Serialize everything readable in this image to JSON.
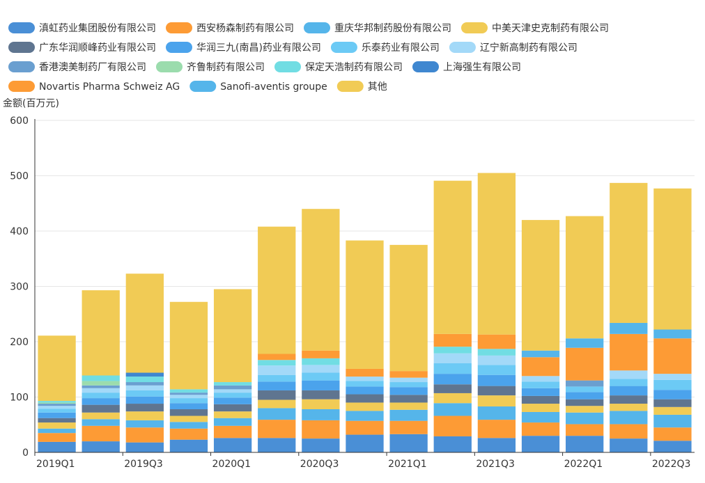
{
  "chart_data": {
    "type": "bar",
    "stacked": true,
    "ylabel": "金额(百万元)",
    "ylim": [
      0,
      600
    ],
    "yticks": [
      0,
      100,
      200,
      300,
      400,
      500,
      600
    ],
    "categories": [
      "2019Q1",
      "2019Q2",
      "2019Q3",
      "2019Q4",
      "2020Q1",
      "2020Q2",
      "2020Q3",
      "2020Q4",
      "2021Q1",
      "2021Q2",
      "2021Q3",
      "2021Q4",
      "2022Q1",
      "2022Q2",
      "2022Q3"
    ],
    "xtick_labels": [
      "2019Q1",
      "",
      "2019Q3",
      "",
      "2020Q1",
      "",
      "2020Q3",
      "",
      "2021Q1",
      "",
      "2021Q3",
      "",
      "2022Q1",
      "",
      "2022Q3"
    ],
    "legend_position": "top",
    "series": [
      {
        "name": "滇虹药业集团股份有限公司",
        "color": "#4a8fd6",
        "values": [
          19,
          20,
          18,
          23,
          26,
          26,
          25,
          32,
          33,
          29,
          26,
          30,
          30,
          25,
          21
        ]
      },
      {
        "name": "西安杨森制药有限公司",
        "color": "#fd9b35",
        "values": [
          16,
          28,
          27,
          20,
          22,
          33,
          33,
          25,
          24,
          37,
          33,
          24,
          21,
          26,
          24
        ]
      },
      {
        "name": "重庆华邦制药股份有限公司",
        "color": "#55b5ea",
        "values": [
          8,
          12,
          13,
          12,
          14,
          21,
          20,
          18,
          20,
          23,
          24,
          19,
          21,
          24,
          23
        ]
      },
      {
        "name": "中美天津史克制药有限公司",
        "color": "#f1cb55",
        "values": [
          11,
          12,
          16,
          11,
          12,
          15,
          18,
          15,
          13,
          18,
          20,
          15,
          12,
          13,
          14
        ]
      },
      {
        "name": "广东华润顺峰药业有限公司",
        "color": "#5f7590",
        "values": [
          8,
          14,
          14,
          12,
          13,
          17,
          16,
          15,
          14,
          16,
          17,
          14,
          12,
          15,
          14
        ]
      },
      {
        "name": "华润三九(南昌)药业有限公司",
        "color": "#4ba3ec",
        "values": [
          10,
          12,
          13,
          11,
          12,
          16,
          18,
          14,
          14,
          19,
          20,
          14,
          13,
          17,
          17
        ]
      },
      {
        "name": "乐泰药业有限公司",
        "color": "#6ccaf5",
        "values": [
          7,
          10,
          11,
          9,
          9,
          12,
          14,
          10,
          9,
          19,
          18,
          12,
          10,
          13,
          18
        ]
      },
      {
        "name": "辽宁新高制药有限公司",
        "color": "#a3d9f8",
        "values": [
          5,
          8,
          9,
          6,
          6,
          17,
          14,
          8,
          8,
          18,
          17,
          10,
          0,
          15,
          11
        ]
      },
      {
        "name": "香港澳美制药厂有限公司",
        "color": "#6a9fd0",
        "values": [
          4,
          5,
          6,
          4,
          7,
          0,
          0,
          0,
          0,
          0,
          0,
          0,
          11,
          0,
          0
        ]
      },
      {
        "name": "齐鲁制药有限公司",
        "color": "#9bdcad",
        "values": [
          2,
          8,
          0,
          0,
          0,
          0,
          0,
          0,
          0,
          0,
          0,
          0,
          0,
          0,
          0
        ]
      },
      {
        "name": "保定天浩制药有限公司",
        "color": "#71dde3",
        "values": [
          3,
          10,
          10,
          6,
          6,
          10,
          12,
          0,
          0,
          12,
          12,
          0,
          0,
          0,
          0
        ]
      },
      {
        "name": "上海强生有限公司",
        "color": "#3f87d0",
        "values": [
          0,
          0,
          7,
          0,
          0,
          0,
          0,
          0,
          0,
          0,
          0,
          0,
          0,
          0,
          0
        ]
      },
      {
        "name": "Novartis Pharma Schweiz AG",
        "color": "#fd9b35",
        "values": [
          0,
          0,
          0,
          0,
          0,
          11,
          14,
          14,
          12,
          23,
          26,
          34,
          59,
          66,
          64
        ]
      },
      {
        "name": "Sanofi-aventis groupe",
        "color": "#55b5ea",
        "values": [
          0,
          0,
          0,
          0,
          0,
          0,
          0,
          0,
          0,
          0,
          0,
          12,
          17,
          20,
          16
        ]
      },
      {
        "name": "其他",
        "color": "#f1cb55",
        "values": [
          118,
          154,
          179,
          158,
          168,
          230,
          256,
          232,
          228,
          277,
          292,
          236,
          221,
          253,
          255
        ]
      }
    ]
  }
}
